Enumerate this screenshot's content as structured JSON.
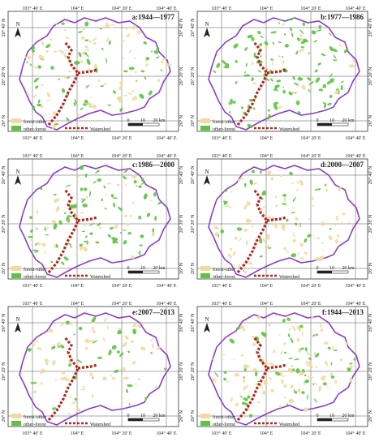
{
  "axes": {
    "x_labels": [
      "103° 40' E",
      "104° E",
      "104° 20' E",
      "104° 40' E"
    ],
    "y_labels": [
      "26° N",
      "26° 20' N",
      "26° 40' N"
    ]
  },
  "legend": {
    "forest_other": "forest-other",
    "other_forest": "other-forest",
    "watershed": "Watershed",
    "colors": {
      "forest_other": "#f2d9a0",
      "other_forest": "#5cc43e",
      "watershed": "#b3261e",
      "boundary": "#8a3fc9"
    }
  },
  "scale_bar": {
    "ticks": [
      "0",
      "10",
      "20 km"
    ]
  },
  "north_label": "N",
  "panels": [
    {
      "title": "a:1944—1977"
    },
    {
      "title": "b:1977—1986"
    },
    {
      "title": "c:1986—2000"
    },
    {
      "title": "d:2000—2007"
    },
    {
      "title": "e:2007—2013"
    },
    {
      "title": "f:1944—2013"
    }
  ]
}
